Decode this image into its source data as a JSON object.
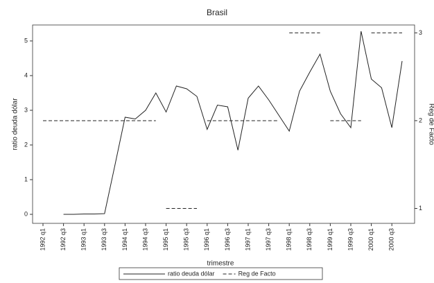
{
  "chart_data": {
    "type": "line",
    "title": "Brasil",
    "x_label": "trimestre",
    "y_label": "ratio deuda dólar",
    "y2_label": "Reg de Facto",
    "categories": [
      "1992 q1",
      null,
      "1992 q3",
      null,
      "1993 q1",
      null,
      "1993 q3",
      null,
      "1994 q1",
      null,
      "1994 q3",
      null,
      "1995 q1",
      null,
      "1995 q3",
      null,
      "1996 q1",
      null,
      "1996 q3",
      null,
      "1997 q1",
      null,
      "1997 q3",
      null,
      "1998 q1",
      null,
      "1998 q3",
      null,
      "1999 q1",
      null,
      "1999 q3",
      null,
      "2000 q1",
      null,
      "2000 q3",
      null
    ],
    "series": [
      {
        "name": "ratio deuda dólar",
        "color": "#222222",
        "dash": "solid",
        "values": [
          null,
          null,
          0,
          0,
          0.01,
          0.01,
          0.02,
          1.4,
          2.8,
          2.75,
          3.0,
          3.5,
          2.95,
          3.7,
          3.62,
          3.4,
          2.45,
          3.15,
          3.1,
          1.85,
          3.35,
          3.7,
          3.3,
          2.85,
          2.4,
          3.55,
          4.1,
          4.62,
          3.55,
          2.9,
          2.5,
          5.28,
          3.9,
          3.65,
          2.5,
          4.42
        ]
      },
      {
        "name": "Reg de Facto",
        "color": "#222222",
        "dash": "dashed",
        "axis": "y2",
        "values": [
          2,
          2,
          2,
          2,
          2,
          2,
          2,
          2,
          2,
          2,
          2,
          2,
          1,
          1,
          1,
          1,
          2,
          2,
          2,
          2,
          2,
          2,
          2,
          2,
          3,
          3,
          3,
          3,
          2,
          2,
          2,
          2,
          3,
          3,
          3,
          3
        ]
      }
    ],
    "ylim": [
      -0.26,
      5.46
    ],
    "yticks": [
      0,
      1,
      2,
      3,
      4,
      5
    ],
    "y2lim": [
      0.83,
      3.09
    ],
    "y2ticks": [
      1,
      2,
      3
    ]
  }
}
